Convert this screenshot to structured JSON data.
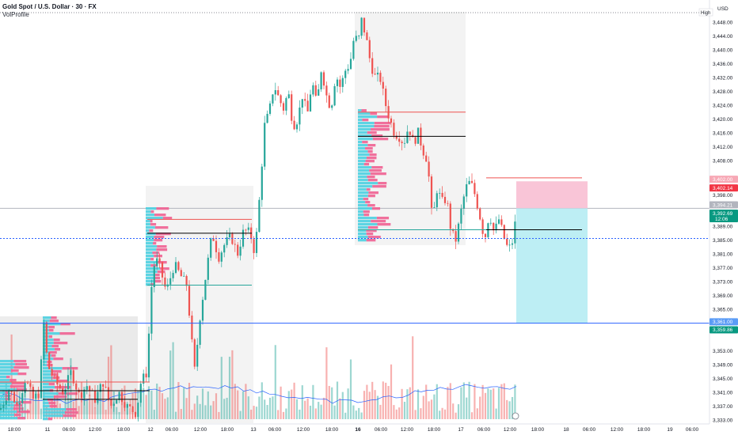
{
  "header": {
    "symbol_title": "Gold Spot / U.S. Dollar · 30 · FX",
    "indicator": "VolProfile"
  },
  "price_axis": {
    "currency": "USD",
    "high_label": "High",
    "ticks": [
      "3,448.00",
      "3,444.00",
      "3,440.00",
      "3,436.00",
      "3,432.00",
      "3,428.00",
      "3,424.00",
      "3,420.00",
      "3,416.00",
      "3,412.00",
      "3,408.00",
      "3,398.00",
      "3,389.00",
      "3,385.00",
      "3,381.00",
      "3,377.00",
      "3,373.00",
      "3,369.00",
      "3,365.00",
      "3,361.00",
      "3,353.00",
      "3,349.00",
      "3,345.00",
      "3,341.00",
      "3,337.00",
      "3,333.00"
    ],
    "tags": {
      "stop": {
        "text": "3,402.14",
        "color": "#f23645"
      },
      "target_top": {
        "text": "3,402.00",
        "color": "#f7a8b5"
      },
      "last_price": {
        "text": "3,394.21",
        "color": "#b2b5be"
      },
      "current": {
        "text": "3,392.69",
        "sub": "12:06",
        "color": "#089981"
      },
      "entry_line": {
        "text": "3,361.00",
        "color": "#5b9cf6"
      },
      "target": {
        "text": "3,359.86",
        "color": "#089981"
      }
    }
  },
  "time_axis": {
    "ticks": [
      "18:00",
      "11",
      "06:00",
      "12:00",
      "18:00",
      "12",
      "06:00",
      "12:00",
      "18:00",
      "13",
      "06:00",
      "12:00",
      "18:00",
      "16",
      "06:00",
      "12:00",
      "18:00",
      "17",
      "06:00",
      "12:00",
      "18:00",
      "18",
      "06:00",
      "12:00",
      "18:00",
      "19",
      "06:00"
    ],
    "bold_ticks": [
      "16"
    ]
  },
  "colors": {
    "up": "#26a69a",
    "down": "#ef5350",
    "profile_up": "#4dd0e1",
    "profile_down": "#f06292",
    "entry_line": "#2962ff",
    "dotted_line": "#2962ff",
    "ma_line": "#2962ff",
    "reward_zone": "#b2ebf2",
    "risk_zone": "#f8bbd0"
  },
  "chart_data": {
    "type": "candlestick",
    "symbol": "XAUUSD",
    "timeframe": "30",
    "ylim": [
      3331,
      3450
    ],
    "current_price": 3392.69,
    "last_price": 3394.21,
    "key_levels": {
      "dotted_support": 3385.5,
      "entry_line": 3361.0,
      "stop_loss": 3402.14,
      "target": 3359.86
    },
    "position": {
      "side": "short",
      "entry": 3394.2,
      "stop": 3402.0,
      "target": 3361.0
    },
    "price_path": [
      [
        0,
        3336
      ],
      [
        12,
        3342
      ],
      [
        22,
        3337
      ],
      [
        32,
        3345
      ],
      [
        42,
        3339
      ],
      [
        50,
        3341
      ],
      [
        55,
        3362
      ],
      [
        60,
        3349
      ],
      [
        70,
        3344
      ],
      [
        80,
        3341
      ],
      [
        90,
        3347
      ],
      [
        100,
        3340
      ],
      [
        110,
        3343
      ],
      [
        120,
        3339
      ],
      [
        130,
        3344
      ],
      [
        140,
        3337
      ],
      [
        150,
        3341
      ],
      [
        160,
        3337
      ],
      [
        172,
        3335
      ],
      [
        178,
        3344
      ],
      [
        186,
        3347
      ],
      [
        190,
        3369
      ],
      [
        196,
        3380
      ],
      [
        202,
        3377
      ],
      [
        210,
        3370
      ],
      [
        220,
        3378
      ],
      [
        230,
        3374
      ],
      [
        236,
        3372
      ],
      [
        242,
        3356
      ],
      [
        246,
        3347
      ],
      [
        252,
        3362
      ],
      [
        260,
        3375
      ],
      [
        268,
        3387
      ],
      [
        276,
        3380
      ],
      [
        284,
        3384
      ],
      [
        292,
        3386
      ],
      [
        300,
        3381
      ],
      [
        308,
        3388
      ],
      [
        316,
        3387
      ],
      [
        322,
        3381
      ],
      [
        328,
        3398
      ],
      [
        334,
        3418
      ],
      [
        340,
        3422
      ],
      [
        346,
        3430
      ],
      [
        352,
        3426
      ],
      [
        358,
        3423
      ],
      [
        364,
        3428
      ],
      [
        370,
        3418
      ],
      [
        376,
        3420
      ],
      [
        382,
        3427
      ],
      [
        388,
        3421
      ],
      [
        394,
        3431
      ],
      [
        400,
        3424
      ],
      [
        406,
        3435
      ],
      [
        412,
        3427
      ],
      [
        418,
        3423
      ],
      [
        424,
        3433
      ],
      [
        430,
        3429
      ],
      [
        436,
        3434
      ],
      [
        442,
        3436
      ],
      [
        448,
        3445
      ],
      [
        452,
        3441
      ],
      [
        456,
        3449
      ],
      [
        462,
        3444
      ],
      [
        468,
        3436
      ],
      [
        474,
        3432
      ],
      [
        480,
        3432
      ],
      [
        486,
        3425
      ],
      [
        492,
        3420
      ],
      [
        498,
        3416
      ],
      [
        504,
        3415
      ],
      [
        510,
        3413
      ],
      [
        516,
        3418
      ],
      [
        522,
        3413
      ],
      [
        528,
        3416
      ],
      [
        534,
        3411
      ],
      [
        540,
        3408
      ],
      [
        546,
        3390
      ],
      [
        552,
        3400
      ],
      [
        558,
        3396
      ],
      [
        564,
        3397
      ],
      [
        570,
        3387
      ],
      [
        576,
        3385
      ],
      [
        582,
        3393
      ],
      [
        588,
        3400
      ],
      [
        594,
        3402
      ],
      [
        600,
        3398
      ],
      [
        606,
        3392
      ],
      [
        612,
        3385
      ],
      [
        618,
        3393
      ],
      [
        624,
        3387
      ],
      [
        630,
        3391
      ],
      [
        636,
        3386
      ],
      [
        642,
        3382
      ],
      [
        648,
        3385
      ],
      [
        652,
        3392.7
      ]
    ]
  }
}
